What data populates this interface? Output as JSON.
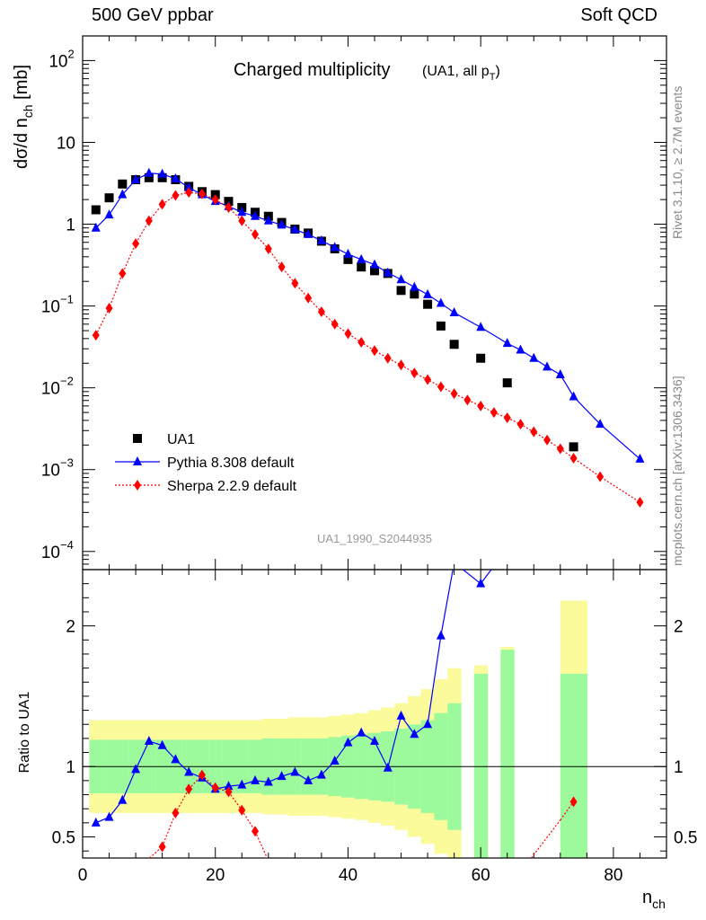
{
  "header": {
    "left": "500 GeV ppbar",
    "right": "Soft QCD"
  },
  "side_labels": {
    "rivet": "Rivet 3.1.10, ≥ 2.7M events",
    "mcplots": "mcplots.cern.ch [arXiv:1306.3436]"
  },
  "chart_data": [
    {
      "type": "scatter",
      "title": "Charged multiplicity",
      "subtitle": "(UA1, all p_T)",
      "ylabel": "dσ/d n_ch [mb]",
      "watermark": "UA1_1990_S2044935",
      "yscale": "log",
      "xlim": [
        0,
        88
      ],
      "ylim": [
        6e-05,
        200
      ],
      "yticks": [
        {
          "value": 0.0001,
          "base": "10",
          "exp": "−4"
        },
        {
          "value": 0.001,
          "base": "10",
          "exp": "−3"
        },
        {
          "value": 0.01,
          "base": "10",
          "exp": "−2"
        },
        {
          "value": 0.1,
          "base": "10",
          "exp": "−1"
        },
        {
          "value": 1,
          "base": "1",
          "exp": ""
        },
        {
          "value": 10,
          "base": "10",
          "exp": ""
        },
        {
          "value": 100,
          "base": "10",
          "exp": "2"
        }
      ],
      "legend_position": "bottom-left",
      "series": [
        {
          "name": "UA1",
          "color": "#000000",
          "marker": "square",
          "x": [
            2,
            4,
            6,
            8,
            10,
            12,
            14,
            16,
            18,
            20,
            22,
            24,
            26,
            28,
            30,
            32,
            34,
            36,
            38,
            40,
            42,
            44,
            46,
            48,
            50,
            52,
            54,
            56,
            60,
            64,
            74
          ],
          "y": [
            1.5,
            2.1,
            3.1,
            3.5,
            3.7,
            3.7,
            3.5,
            2.9,
            2.5,
            2.3,
            1.9,
            1.6,
            1.4,
            1.25,
            1.05,
            0.87,
            0.78,
            0.62,
            0.5,
            0.37,
            0.3,
            0.27,
            0.25,
            0.155,
            0.14,
            0.105,
            0.057,
            0.034,
            0.023,
            0.0115,
            0.0019
          ]
        },
        {
          "name": "Pythia 8.308 default",
          "color": "#0000ff",
          "marker": "triangle",
          "line": "solid",
          "x": [
            2,
            4,
            6,
            8,
            10,
            12,
            14,
            16,
            18,
            20,
            22,
            24,
            26,
            28,
            30,
            32,
            34,
            36,
            38,
            40,
            42,
            44,
            46,
            48,
            50,
            52,
            54,
            56,
            60,
            64,
            66,
            68,
            70,
            72,
            74,
            78,
            84
          ],
          "y": [
            0.9,
            1.3,
            2.3,
            3.5,
            4.2,
            4.1,
            3.6,
            2.8,
            2.3,
            1.9,
            1.65,
            1.4,
            1.25,
            1.1,
            0.98,
            0.86,
            0.75,
            0.63,
            0.52,
            0.43,
            0.37,
            0.32,
            0.255,
            0.21,
            0.17,
            0.138,
            0.108,
            0.083,
            0.055,
            0.035,
            0.029,
            0.023,
            0.018,
            0.0145,
            0.0078,
            0.0036,
            0.00135
          ]
        },
        {
          "name": "Sherpa 2.2.9 default",
          "color": "#ff0000",
          "marker": "diamond",
          "line": "dotted",
          "x": [
            2,
            4,
            6,
            8,
            10,
            12,
            14,
            16,
            18,
            20,
            22,
            24,
            26,
            28,
            30,
            32,
            34,
            36,
            38,
            40,
            42,
            44,
            46,
            48,
            50,
            52,
            54,
            56,
            58,
            60,
            62,
            64,
            66,
            68,
            70,
            72,
            74,
            78,
            84
          ],
          "y": [
            0.044,
            0.094,
            0.25,
            0.58,
            1.1,
            1.75,
            2.25,
            2.45,
            2.35,
            2.0,
            1.6,
            1.1,
            0.75,
            0.5,
            0.3,
            0.19,
            0.125,
            0.085,
            0.06,
            0.046,
            0.036,
            0.0285,
            0.023,
            0.019,
            0.0152,
            0.0126,
            0.0103,
            0.0085,
            0.0071,
            0.006,
            0.005,
            0.0043,
            0.0036,
            0.0029,
            0.0023,
            0.0018,
            0.00138,
            0.00082,
            0.0004
          ]
        }
      ]
    },
    {
      "type": "line",
      "ylabel": "Ratio to UA1",
      "xlabel": "n_ch",
      "xlim": [
        0,
        88
      ],
      "ylim": [
        0.35,
        2.4
      ],
      "xticks": [
        0,
        20,
        40,
        60,
        80
      ],
      "yticks": [
        0.5,
        1,
        2
      ],
      "bands": {
        "colors": {
          "stat": "#9cfa9c",
          "total": "#fbfb9c"
        },
        "x_centers": [
          2,
          4,
          6,
          8,
          10,
          12,
          14,
          16,
          18,
          20,
          22,
          24,
          26,
          28,
          30,
          32,
          34,
          36,
          38,
          40,
          42,
          44,
          46,
          48,
          50,
          52,
          54,
          56,
          60,
          64,
          74
        ],
        "inner": [
          0.19,
          0.19,
          0.19,
          0.19,
          0.19,
          0.19,
          0.19,
          0.19,
          0.19,
          0.19,
          0.19,
          0.19,
          0.19,
          0.2,
          0.2,
          0.2,
          0.2,
          0.2,
          0.21,
          0.22,
          0.23,
          0.24,
          0.25,
          0.27,
          0.3,
          0.33,
          0.38,
          0.45,
          0.66,
          0.83,
          0.66
        ],
        "outer": [
          0.33,
          0.33,
          0.33,
          0.33,
          0.33,
          0.33,
          0.33,
          0.33,
          0.33,
          0.33,
          0.33,
          0.33,
          0.33,
          0.34,
          0.34,
          0.35,
          0.35,
          0.35,
          0.36,
          0.37,
          0.38,
          0.4,
          0.42,
          0.45,
          0.5,
          0.55,
          0.62,
          0.7,
          0.72,
          0.85,
          1.18
        ]
      },
      "series": [
        {
          "name": "Pythia 8.308 default",
          "color": "#0000ff",
          "marker": "triangle",
          "line": "solid",
          "x": [
            2,
            4,
            6,
            8,
            10,
            12,
            14,
            16,
            18,
            20,
            22,
            24,
            26,
            28,
            30,
            32,
            34,
            36,
            38,
            40,
            42,
            44,
            46,
            48,
            50,
            52,
            54,
            56,
            60,
            64
          ],
          "y": [
            0.6,
            0.64,
            0.76,
            0.98,
            1.18,
            1.15,
            1.05,
            0.96,
            0.92,
            0.84,
            0.86,
            0.87,
            0.9,
            0.89,
            0.93,
            0.96,
            0.9,
            0.94,
            1.04,
            1.17,
            1.24,
            1.18,
            0.99,
            1.36,
            1.23,
            1.3,
            1.93,
            2.45,
            2.3,
            2.55
          ]
        },
        {
          "name": "Sherpa 2.2.9 default",
          "color": "#ff0000",
          "marker": "diamond",
          "line": "dotted",
          "x": [
            6,
            12,
            14,
            16,
            18,
            20,
            22,
            24,
            26,
            28,
            72,
            74
          ],
          "y": [
            0.18,
            0.43,
            0.67,
            0.84,
            0.94,
            0.85,
            0.82,
            0.69,
            0.54,
            0.33,
            0.62,
            0.75
          ]
        }
      ]
    }
  ]
}
